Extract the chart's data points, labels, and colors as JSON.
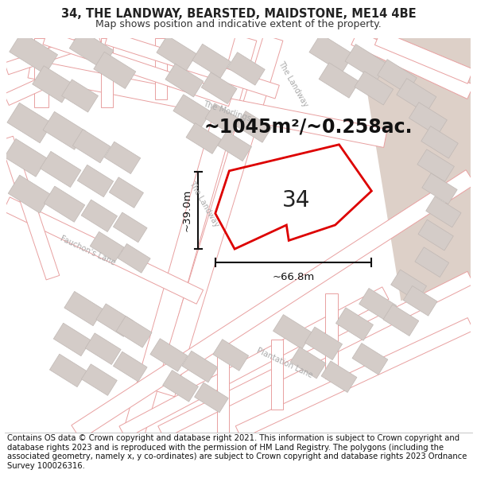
{
  "title": "34, THE LANDWAY, BEARSTED, MAIDSTONE, ME14 4BE",
  "subtitle": "Map shows position and indicative extent of the property.",
  "footer": "Contains OS data © Crown copyright and database right 2021. This information is subject to Crown copyright and database rights 2023 and is reproduced with the permission of HM Land Registry. The polygons (including the associated geometry, namely x, y co-ordinates) are subject to Crown copyright and database rights 2023 Ordnance Survey 100026316.",
  "area_label": "~1045m²/~0.258ac.",
  "width_label": "~66.8m",
  "height_label": "~39.0m",
  "plot_number": "34",
  "map_bg": "#ffffff",
  "road_outline_color": "#e8a0a0",
  "road_fill_color": "#ffffff",
  "building_fill": "#d4ccc8",
  "building_edge": "#c0b8b4",
  "tan_area_color": "#ddd0c8",
  "plot_outline_color": "#dd0000",
  "dim_line_color": "#111111",
  "title_fontsize": 10.5,
  "subtitle_fontsize": 9,
  "footer_fontsize": 7.2,
  "area_fontsize": 17,
  "dim_fontsize": 9.5,
  "plot_label_fontsize": 20,
  "road_label_fontsize": 7,
  "road_label_color": "#aaaaaa"
}
